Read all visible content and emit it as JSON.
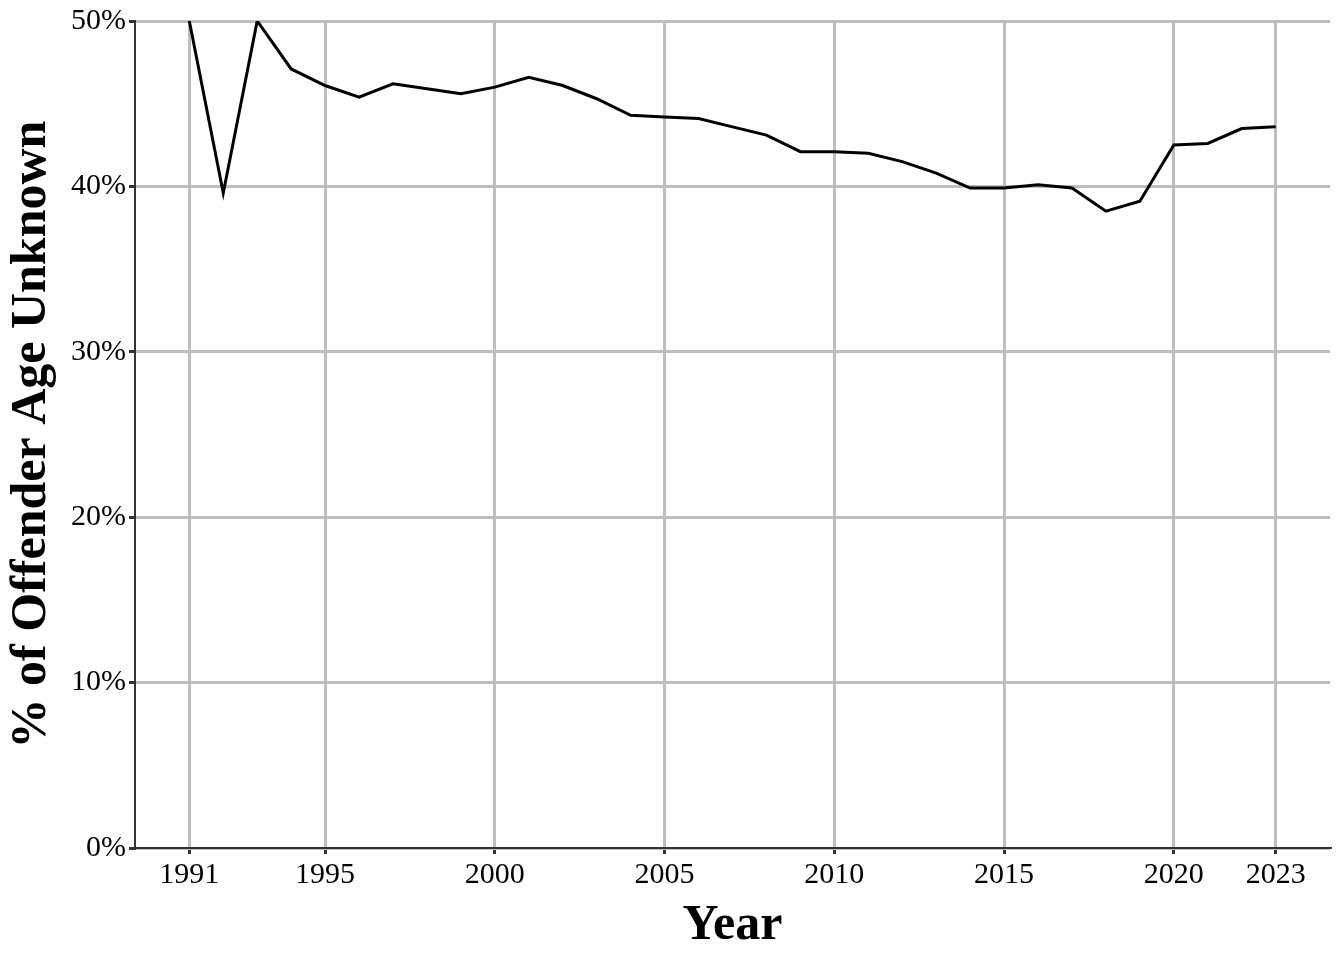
{
  "chart_data": {
    "type": "line",
    "x_label": "Year",
    "y_label": "% of Offender Age Unknown",
    "x": [
      1991,
      1992,
      1993,
      1994,
      1995,
      1996,
      1997,
      1998,
      1999,
      2000,
      2001,
      2002,
      2003,
      2004,
      2005,
      2006,
      2007,
      2008,
      2009,
      2010,
      2011,
      2012,
      2013,
      2014,
      2015,
      2016,
      2017,
      2018,
      2019,
      2020,
      2021,
      2022,
      2023
    ],
    "values": [
      50,
      39.6,
      50,
      47.1,
      46.1,
      45.4,
      46.2,
      45.9,
      45.6,
      46.0,
      46.6,
      46.1,
      45.3,
      44.3,
      44.2,
      44.1,
      43.6,
      43.1,
      42.1,
      42.1,
      42.0,
      41.5,
      40.8,
      39.9,
      39.9,
      40.1,
      39.9,
      38.5,
      39.1,
      42.5,
      42.6,
      43.5,
      43.6
    ],
    "color": "#000000",
    "xlim": [
      1989.4,
      2024.6
    ],
    "xticks": [
      1991,
      1995,
      2000,
      2005,
      2010,
      2015,
      2020,
      2023
    ],
    "ylim": [
      0,
      50
    ],
    "yticks": [
      {
        "value": 0,
        "label": "0%"
      },
      {
        "value": 10,
        "label": "10%"
      },
      {
        "value": 20,
        "label": "20%"
      },
      {
        "value": 30,
        "label": "30%"
      },
      {
        "value": 40,
        "label": "40%"
      },
      {
        "value": 50,
        "label": "50%"
      }
    ],
    "grid": true
  }
}
